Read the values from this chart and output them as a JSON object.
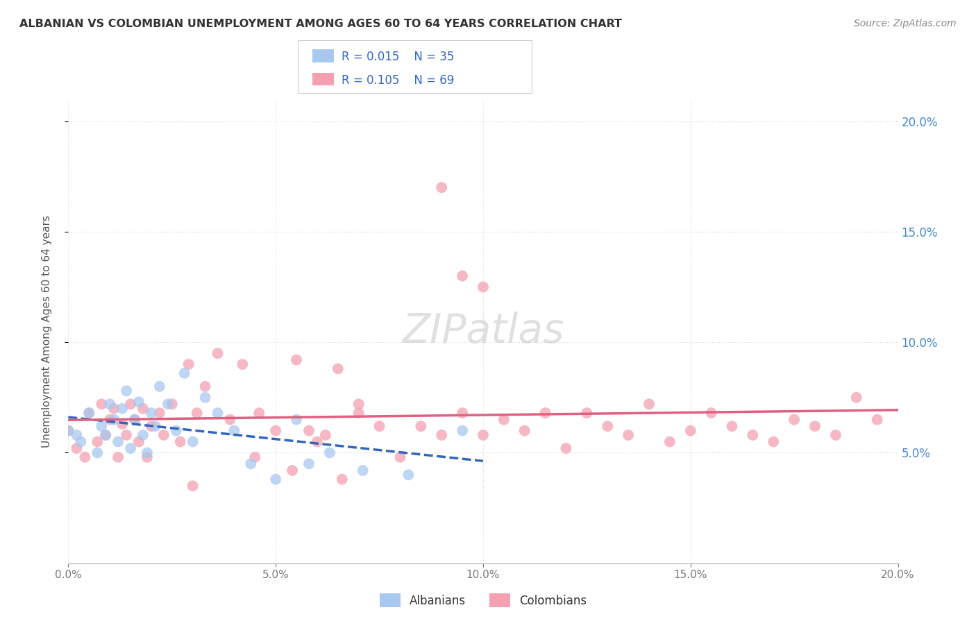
{
  "title": "ALBANIAN VS COLOMBIAN UNEMPLOYMENT AMONG AGES 60 TO 64 YEARS CORRELATION CHART",
  "source": "Source: ZipAtlas.com",
  "ylabel": "Unemployment Among Ages 60 to 64 years",
  "xlim": [
    0.0,
    0.2
  ],
  "ylim": [
    0.0,
    0.21
  ],
  "xtick_labels": [
    "0.0%",
    "5.0%",
    "10.0%",
    "15.0%",
    "20.0%"
  ],
  "xtick_vals": [
    0.0,
    0.05,
    0.1,
    0.15,
    0.2
  ],
  "ytick_labels": [
    "5.0%",
    "10.0%",
    "15.0%",
    "20.0%"
  ],
  "ytick_vals": [
    0.05,
    0.1,
    0.15,
    0.2
  ],
  "albanian_color": "#a8c8f0",
  "colombian_color": "#f4a0b0",
  "albanian_line_color": "#3366bb",
  "colombian_line_color": "#e06080",
  "background_color": "#ffffff",
  "grid_color": "#dddddd",
  "albanian_x": [
    0.0,
    0.002,
    0.003,
    0.005,
    0.007,
    0.008,
    0.009,
    0.01,
    0.011,
    0.012,
    0.013,
    0.014,
    0.015,
    0.016,
    0.017,
    0.018,
    0.019,
    0.02,
    0.021,
    0.022,
    0.024,
    0.026,
    0.028,
    0.03,
    0.033,
    0.036,
    0.04,
    0.044,
    0.05,
    0.058,
    0.063,
    0.071,
    0.082,
    0.095,
    0.055
  ],
  "albanian_y": [
    0.06,
    0.058,
    0.055,
    0.068,
    0.05,
    0.062,
    0.058,
    0.072,
    0.065,
    0.055,
    0.07,
    0.078,
    0.052,
    0.065,
    0.073,
    0.058,
    0.05,
    0.068,
    0.062,
    0.08,
    0.072,
    0.06,
    0.086,
    0.055,
    0.075,
    0.068,
    0.06,
    0.045,
    0.038,
    0.045,
    0.05,
    0.042,
    0.04,
    0.06,
    0.065
  ],
  "colombian_x": [
    0.0,
    0.002,
    0.004,
    0.005,
    0.007,
    0.008,
    0.009,
    0.01,
    0.011,
    0.012,
    0.013,
    0.014,
    0.015,
    0.016,
    0.017,
    0.018,
    0.019,
    0.02,
    0.022,
    0.023,
    0.025,
    0.027,
    0.029,
    0.031,
    0.033,
    0.036,
    0.039,
    0.042,
    0.046,
    0.05,
    0.054,
    0.058,
    0.062,
    0.066,
    0.07,
    0.075,
    0.08,
    0.085,
    0.09,
    0.095,
    0.1,
    0.105,
    0.11,
    0.115,
    0.12,
    0.125,
    0.13,
    0.135,
    0.14,
    0.145,
    0.15,
    0.155,
    0.16,
    0.165,
    0.17,
    0.175,
    0.18,
    0.185,
    0.19,
    0.195,
    0.03,
    0.045,
    0.055,
    0.06,
    0.065,
    0.07,
    0.09,
    0.095,
    0.1
  ],
  "colombian_y": [
    0.06,
    0.052,
    0.048,
    0.068,
    0.055,
    0.072,
    0.058,
    0.065,
    0.07,
    0.048,
    0.063,
    0.058,
    0.072,
    0.065,
    0.055,
    0.07,
    0.048,
    0.062,
    0.068,
    0.058,
    0.072,
    0.055,
    0.09,
    0.068,
    0.08,
    0.095,
    0.065,
    0.09,
    0.068,
    0.06,
    0.042,
    0.06,
    0.058,
    0.038,
    0.068,
    0.062,
    0.048,
    0.062,
    0.058,
    0.068,
    0.058,
    0.065,
    0.06,
    0.068,
    0.052,
    0.068,
    0.062,
    0.058,
    0.072,
    0.055,
    0.06,
    0.068,
    0.062,
    0.058,
    0.055,
    0.065,
    0.062,
    0.058,
    0.075,
    0.065,
    0.035,
    0.048,
    0.092,
    0.055,
    0.088,
    0.072,
    0.17,
    0.13,
    0.125
  ]
}
